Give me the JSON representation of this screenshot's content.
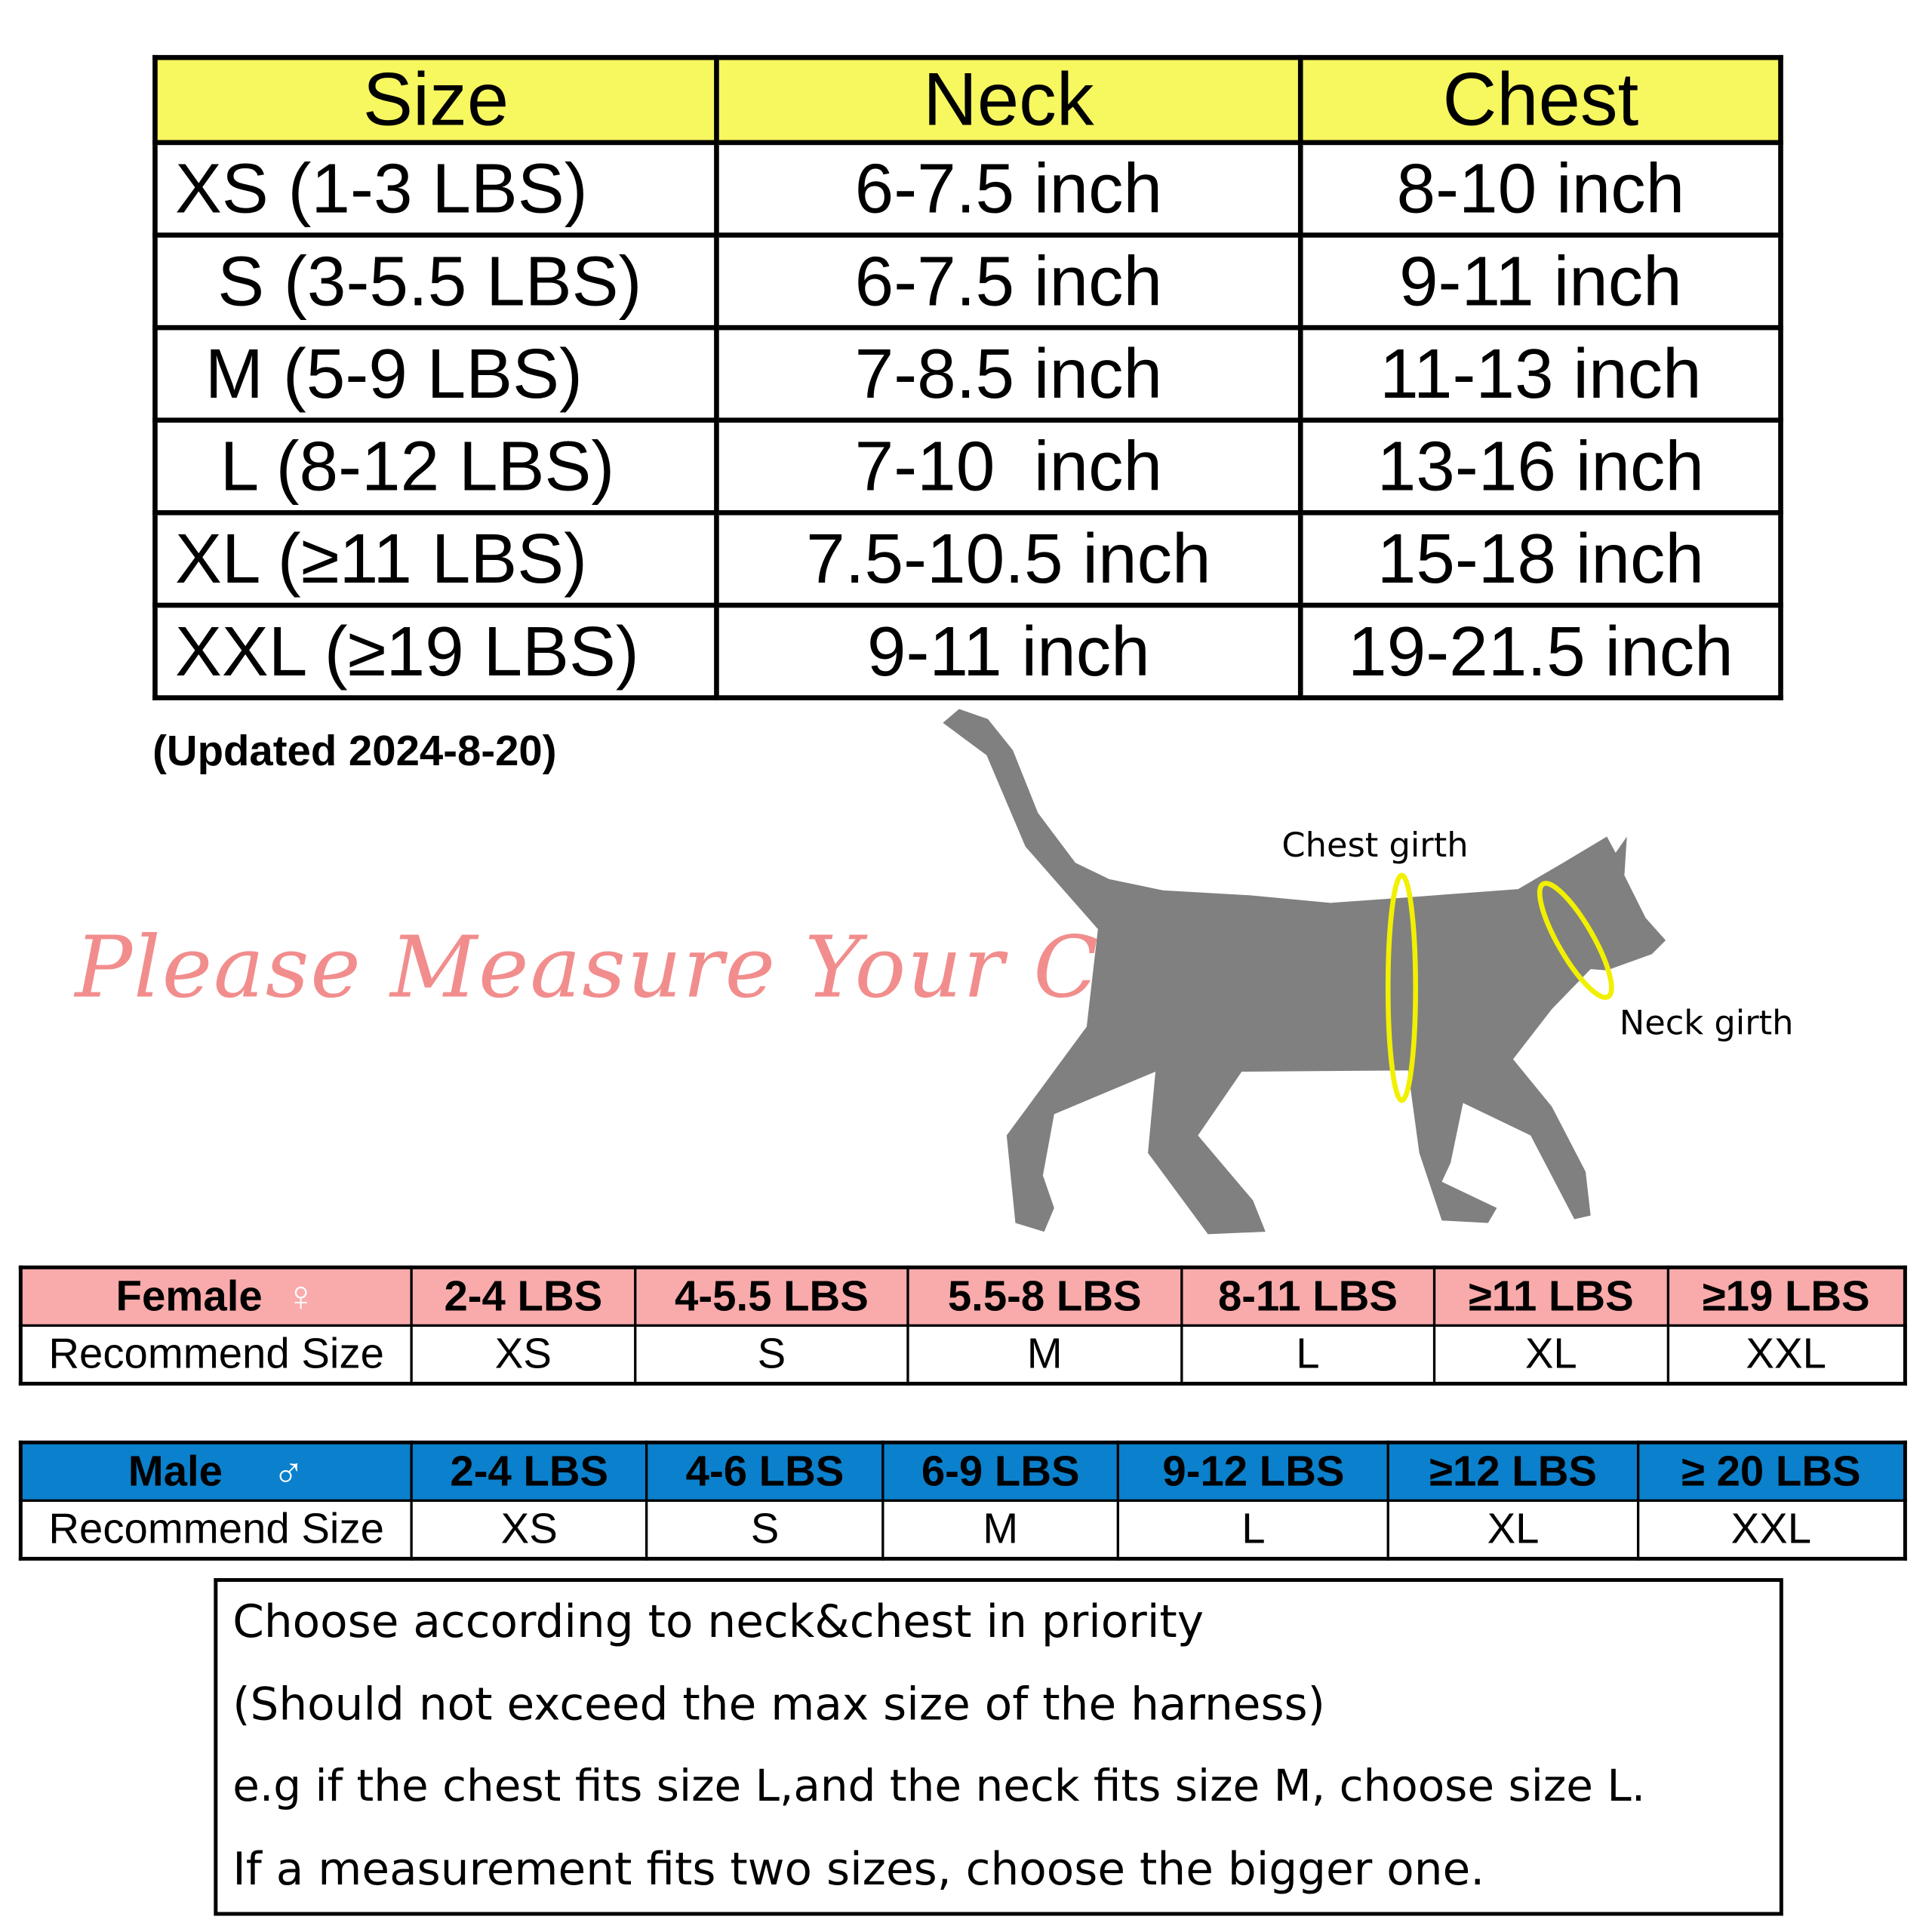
{
  "size_chart": {
    "headers": [
      "Size",
      "Neck",
      "Chest"
    ],
    "rows": [
      {
        "size": "XS (1-3 LBS)",
        "neck": "6-7.5 inch",
        "chest": "8-10 inch"
      },
      {
        "size": "S (3-5.5 LBS)",
        "neck": "6-7.5 inch",
        "chest": "9-11 inch"
      },
      {
        "size": "M (5-9 LBS)",
        "neck": "7-8.5 inch",
        "chest": "11-13 inch"
      },
      {
        "size": "L (8-12 LBS)",
        "neck": "7-10  inch",
        "chest": "13-16 inch"
      },
      {
        "size": "XL (≥11 LBS)",
        "neck": "7.5-10.5 inch",
        "chest": "15-18 inch"
      },
      {
        "size": "XXL (≥19 LBS)",
        "neck": "9-11 inch",
        "chest": "19-21.5 inch"
      }
    ],
    "header_color": "#f7f760"
  },
  "updated": "(Updated 2024-8-20)",
  "measure_title": "Please Measure Your Cat",
  "diagram": {
    "chest_label": "Chest girth",
    "neck_label": "Neck girth",
    "cat_color": "#808080",
    "ring_color": "#f0f000"
  },
  "female": {
    "label": "Female",
    "symbol": "♀",
    "row_label": "Recommend Size",
    "weights": [
      "2-4 LBS",
      "4-5.5 LBS",
      "5.5-8 LBS",
      "8-11 LBS",
      "≥11 LBS",
      "≥19 LBS"
    ],
    "sizes": [
      "XS",
      "S",
      "M",
      "L",
      "XL",
      "XXL"
    ],
    "color": "#f9aaaa"
  },
  "male": {
    "label": "Male",
    "symbol": "♂",
    "row_label": "Recommend Size",
    "weights": [
      "2-4 LBS",
      "4-6 LBS",
      "6-9 LBS",
      "9-12 LBS",
      "≥12 LBS",
      "≥ 20 LBS"
    ],
    "sizes": [
      "XS",
      "S",
      "M",
      "L",
      "XL",
      "XXL"
    ],
    "color": "#0b80cc"
  },
  "notes": [
    "Choose according to neck&chest in priority",
    "(Should not exceed the max size of the harness)",
    "e.g if the chest fits size L,and the neck fits size M, choose size L.",
    "If a measurement fits two sizes, choose the bigger one."
  ]
}
